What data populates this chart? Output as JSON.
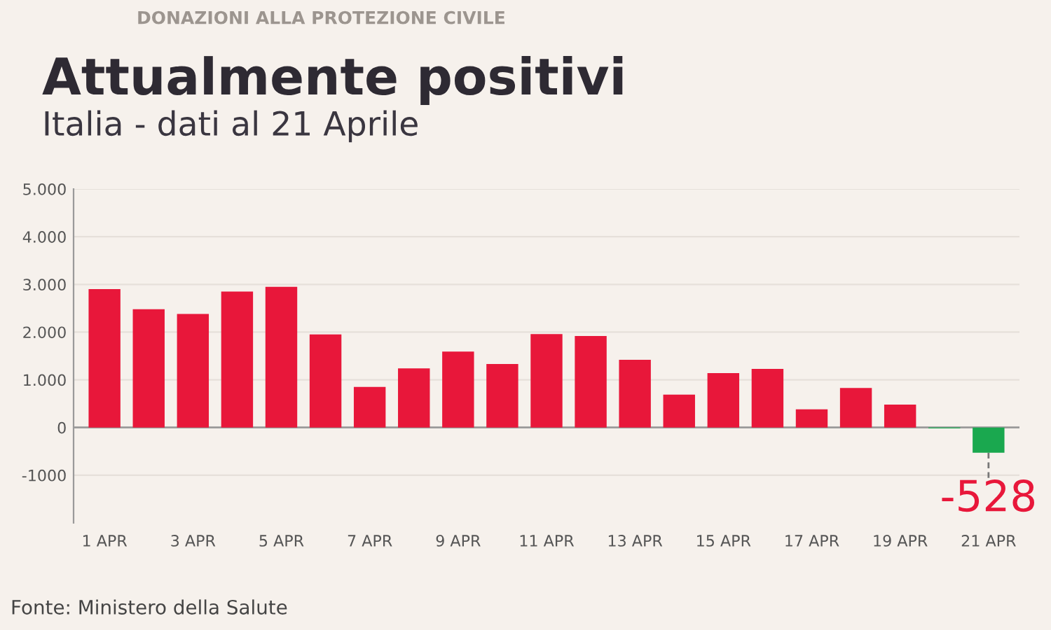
{
  "chart_data": {
    "type": "bar",
    "title": "Attualmente positivi",
    "subtitle": "Italia - dati al 21 Aprile",
    "categories": [
      "1 APR",
      null,
      "3 APR",
      null,
      "5 APR",
      null,
      "7 APR",
      null,
      "9 APR",
      null,
      "11 APR",
      null,
      "13 APR",
      null,
      "15 APR",
      null,
      "17 APR",
      null,
      "19 APR",
      null,
      "21 APR"
    ],
    "values": [
      2900,
      2480,
      2380,
      2850,
      2950,
      1950,
      850,
      1240,
      1590,
      1330,
      1960,
      1920,
      1420,
      690,
      1140,
      1230,
      380,
      830,
      480,
      -20,
      -528
    ],
    "colors": [
      "#e8173a",
      "#e8173a",
      "#e8173a",
      "#e8173a",
      "#e8173a",
      "#e8173a",
      "#e8173a",
      "#e8173a",
      "#e8173a",
      "#e8173a",
      "#e8173a",
      "#e8173a",
      "#e8173a",
      "#e8173a",
      "#e8173a",
      "#e8173a",
      "#e8173a",
      "#e8173a",
      "#e8173a",
      "#1aa84f",
      "#1aa84f"
    ],
    "value_labels": [
      null,
      null,
      null,
      null,
      null,
      null,
      null,
      null,
      null,
      null,
      null,
      null,
      null,
      null,
      null,
      null,
      null,
      null,
      null,
      null,
      "-528"
    ],
    "ylim": [
      -2000,
      5000
    ],
    "yticks": [
      {
        "value": -1000,
        "label": "-1000"
      },
      0,
      {
        "value": 1000,
        "label": "1.000"
      },
      {
        "value": 2000,
        "label": "2.000"
      },
      {
        "value": 3000,
        "label": "3.000"
      },
      {
        "value": 4000,
        "label": "4.000"
      },
      {
        "value": 5000,
        "label": "5.000"
      }
    ],
    "grid": "y",
    "annotations": [
      "DONAZIONI ALLA PROTEZIONE CIVILE",
      "Fonte: Ministero della Salute"
    ]
  }
}
